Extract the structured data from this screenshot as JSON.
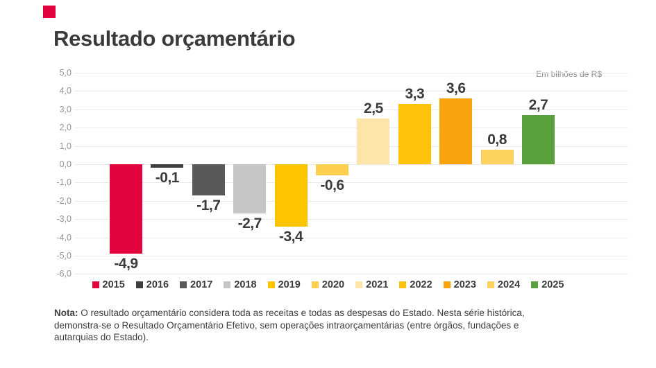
{
  "header": {
    "title": "Resultado orçamentário",
    "accent_color": "#e4043d"
  },
  "chart": {
    "unit_label": "Em bilhões de R$",
    "axis_tick_color": "#959595",
    "grid_color": "#e8e8e8",
    "value_label_color": "#3b3b3b"
  },
  "chart_data": {
    "type": "bar",
    "title": "Resultado orçamentário",
    "unit": "Em bilhões de R$",
    "categories": [
      "2015",
      "2016",
      "2017",
      "2018",
      "2019",
      "2020",
      "2021",
      "2022",
      "2023",
      "2024",
      "2025"
    ],
    "values": [
      -4.9,
      -0.1,
      -1.7,
      -2.7,
      -3.4,
      -0.6,
      2.5,
      3.3,
      3.6,
      0.8,
      2.7
    ],
    "value_labels": [
      "-4,9",
      "-0,1",
      "-1,7",
      "-2,7",
      "-3,4",
      "-0,6",
      "2,5",
      "3,3",
      "3,6",
      "0,8",
      "2,7"
    ],
    "bar_colors": [
      "#e4043d",
      "#3f3f41",
      "#59595b",
      "#c6c6c6",
      "#fdc400",
      "#fccf4e",
      "#fbe5a8",
      "#fdc309",
      "#f8a30b",
      "#fcd25f",
      "#5aa03c"
    ],
    "ylim": [
      -6,
      5
    ],
    "y_ticks": [
      5,
      4,
      3,
      2,
      1,
      0,
      -1,
      -2,
      -3,
      -4,
      -5,
      -6
    ],
    "y_tick_labels": [
      "5,0",
      "4,0",
      "3,0",
      "2,0",
      "1,0",
      "0,0",
      "-1,0",
      "-2,0",
      "-3,0",
      "-4,0",
      "-5,0",
      "-6,0"
    ],
    "grid": true,
    "legend_position": "bottom"
  },
  "note": {
    "label": "Nota:",
    "lines": [
      "O resultado orçamentário considera toda as receitas e todas as despesas do Estado. Nesta série histórica,",
      "demonstra-se o Resultado Orçamentário Efetivo, sem operações intraorçamentárias (entre órgãos, fundações e",
      "autarquias do Estado)."
    ]
  }
}
